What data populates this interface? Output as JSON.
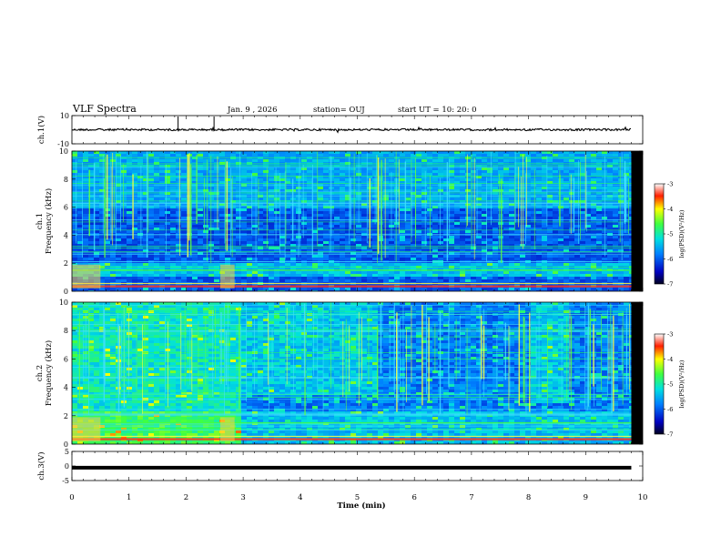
{
  "header": {
    "title": "VLF Spectra",
    "date": "Jan. 9 , 2026",
    "station": "station= OUJ",
    "start": "start UT =  10: 20: 0"
  },
  "chart_data": [
    {
      "type": "line",
      "panel": "ch1-waveform",
      "ylabel": "ch.1(V)",
      "ylim": [
        -10,
        10
      ],
      "yticks": [
        "10",
        "-10"
      ],
      "xlim": [
        0,
        10
      ],
      "trace_end_min": 9.8,
      "baseline_v": 0
    },
    {
      "type": "heatmap",
      "panel": "ch1-spectrogram",
      "ylabel": "ch.1\nFrequency (kHz)",
      "ylim": [
        0,
        10
      ],
      "yticks": [
        "0",
        "2",
        "4",
        "6",
        "8",
        "10"
      ],
      "xlim": [
        0,
        10
      ],
      "colorbar": {
        "label": "log(PSD)(V²/Hz)",
        "range": [
          -7,
          -3
        ],
        "ticks": [
          "-3",
          "-4",
          "-5",
          "-6",
          "-7"
        ]
      }
    },
    {
      "type": "heatmap",
      "panel": "ch2-spectrogram",
      "ylabel": "ch.2\nFrequency (kHz)",
      "ylim": [
        0,
        10
      ],
      "yticks": [
        "0",
        "2",
        "4",
        "6",
        "8",
        "10"
      ],
      "xlim": [
        0,
        10
      ],
      "colorbar": {
        "label": "log(PSD)(V²/Hz)",
        "range": [
          -7,
          -3
        ],
        "ticks": [
          "-3",
          "-4",
          "-5",
          "-6",
          "-7"
        ]
      }
    },
    {
      "type": "line",
      "panel": "ch3-waveform",
      "ylabel": "ch.3(V)",
      "ylim": [
        -5,
        5
      ],
      "yticks": [
        "5",
        "0",
        "-5"
      ],
      "xlim": [
        0,
        10
      ],
      "trace_end_min": 9.8,
      "baseline_v": -0.6
    }
  ],
  "xaxis": {
    "label": "Time (min)",
    "ticks": [
      "0",
      "1",
      "2",
      "3",
      "4",
      "5",
      "6",
      "7",
      "8",
      "9",
      "10"
    ]
  }
}
